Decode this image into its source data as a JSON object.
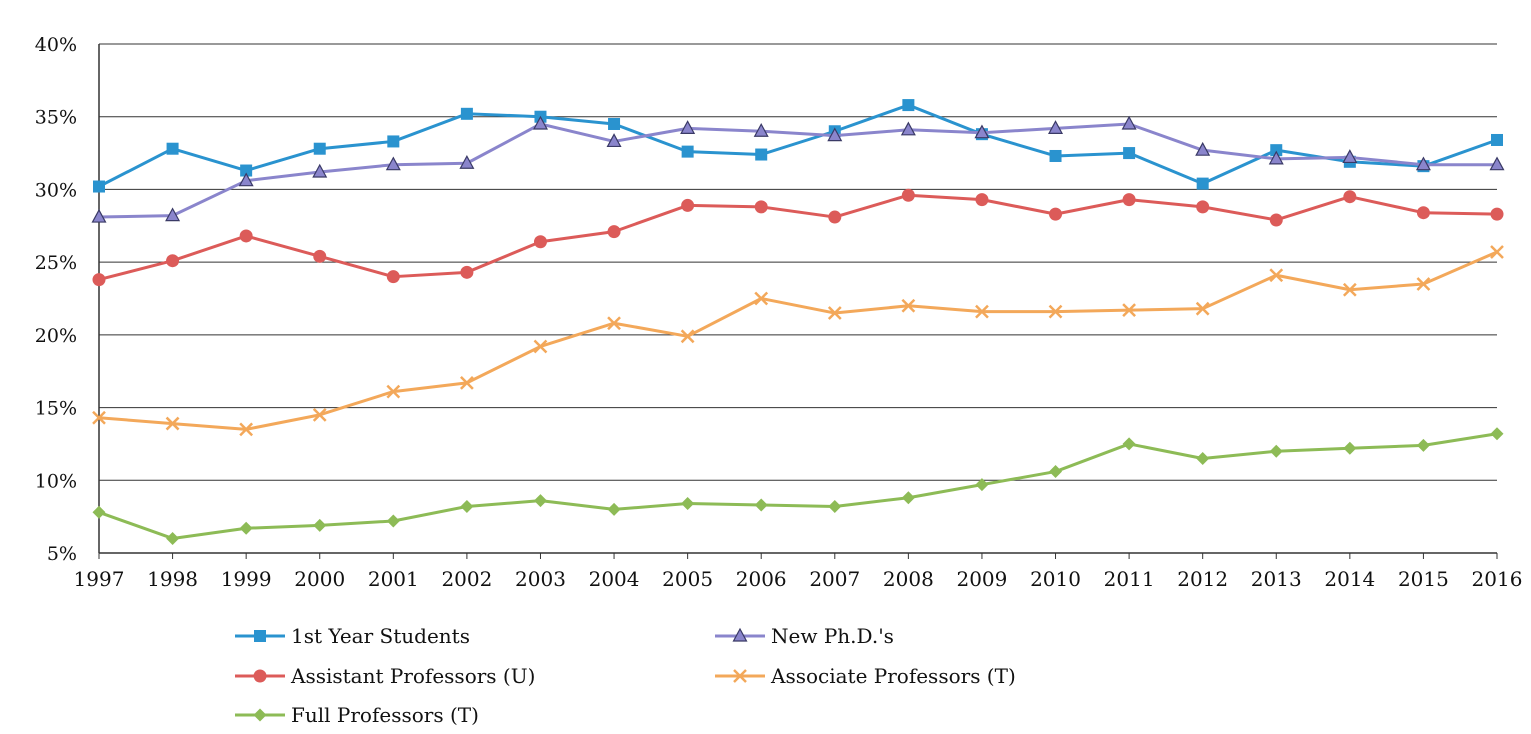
{
  "chart_data": {
    "type": "line",
    "title": "",
    "xlabel": "",
    "ylabel": "",
    "x": [
      "1997",
      "1998",
      "1999",
      "2000",
      "2001",
      "2002",
      "2003",
      "2004",
      "2005",
      "2006",
      "2007",
      "2008",
      "2009",
      "2010",
      "2011",
      "2012",
      "2013",
      "2014",
      "2015",
      "2016"
    ],
    "ylim": [
      5,
      40
    ],
    "yticks": [
      5,
      10,
      15,
      20,
      25,
      30,
      35,
      40
    ],
    "ytick_labels": [
      "5%",
      "10%",
      "15%",
      "20%",
      "25%",
      "30%",
      "35%",
      "40%"
    ],
    "grid": "horizontal",
    "legend_position": "bottom",
    "series": [
      {
        "name": "1st Year Students",
        "color": "#2a93cf",
        "marker": "square",
        "values": [
          30.2,
          32.8,
          31.3,
          32.8,
          33.3,
          35.2,
          35.0,
          34.5,
          32.6,
          32.4,
          34.0,
          35.8,
          33.8,
          32.3,
          32.5,
          30.4,
          32.7,
          31.9,
          31.6,
          33.4
        ]
      },
      {
        "name": "New Ph.D.'s",
        "color": "#8a85cc",
        "marker": "triangle",
        "values": [
          28.1,
          28.2,
          30.6,
          31.2,
          31.7,
          31.8,
          34.5,
          33.3,
          34.2,
          34.0,
          33.7,
          34.1,
          33.9,
          34.2,
          34.5,
          32.7,
          32.1,
          32.2,
          31.7,
          31.7
        ]
      },
      {
        "name": "Assistant Professors (U)",
        "color": "#dc5b59",
        "marker": "circle",
        "values": [
          23.8,
          25.1,
          26.8,
          25.4,
          24.0,
          24.3,
          26.4,
          27.1,
          28.9,
          28.8,
          28.1,
          29.6,
          29.3,
          28.3,
          29.3,
          28.8,
          27.9,
          29.5,
          28.4,
          28.3
        ]
      },
      {
        "name": "Associate Professors (T)",
        "color": "#f3a85a",
        "marker": "x",
        "values": [
          14.3,
          13.9,
          13.5,
          14.5,
          16.1,
          16.7,
          19.2,
          20.8,
          19.9,
          22.5,
          21.5,
          22.0,
          21.6,
          21.6,
          21.7,
          21.8,
          24.1,
          23.1,
          23.5,
          25.7
        ]
      },
      {
        "name": "Full Professors (T)",
        "color": "#8dbb56",
        "marker": "diamond",
        "values": [
          7.8,
          6.0,
          6.7,
          6.9,
          7.2,
          8.2,
          8.6,
          8.0,
          8.4,
          8.3,
          8.2,
          8.8,
          9.7,
          10.6,
          12.5,
          11.5,
          12.0,
          12.2,
          12.4,
          13.2
        ]
      }
    ]
  }
}
